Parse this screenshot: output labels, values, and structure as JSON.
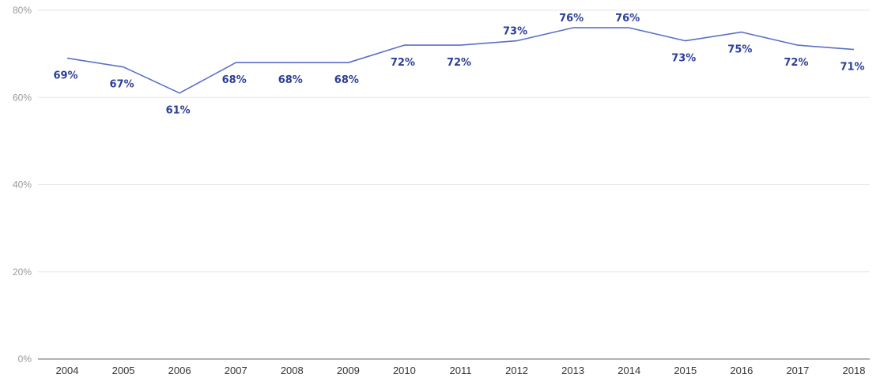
{
  "colors": {
    "line": "#5b6fc7",
    "label": "#2c3e99"
  },
  "chart_data": {
    "type": "line",
    "x": [
      "2004",
      "2005",
      "2006",
      "2007",
      "2008",
      "2009",
      "2010",
      "2011",
      "2012",
      "2013",
      "2014",
      "2015",
      "2016",
      "2017",
      "2018"
    ],
    "series": [
      {
        "values": [
          69,
          67,
          61,
          68,
          68,
          68,
          72,
          72,
          73,
          76,
          76,
          73,
          75,
          72,
          71
        ],
        "labels": [
          "69%",
          "67%",
          "61%",
          "68%",
          "68%",
          "68%",
          "72%",
          "72%",
          "73%",
          "76%",
          "76%",
          "73%",
          "75%",
          "72%",
          "71%"
        ]
      }
    ],
    "ylim": [
      0,
      80
    ],
    "yticks": [
      0,
      20,
      40,
      60,
      80
    ],
    "ytick_labels": [
      "0%",
      "20%",
      "40%",
      "60%",
      "80%"
    ],
    "grid": true,
    "data_label_position": [
      "below",
      "below",
      "below",
      "below",
      "below",
      "below",
      "below",
      "below",
      "above",
      "above",
      "above",
      "below",
      "below",
      "below",
      "below"
    ]
  }
}
